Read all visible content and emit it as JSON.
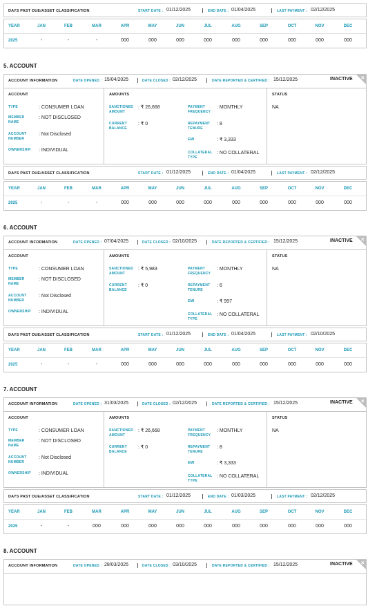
{
  "labels": {
    "dpd": "DAYS PAST DUE/ASSET CLASSIFICATION",
    "start": "START DATE :",
    "end": "END DATE :",
    "last": "LAST PAYMENT :",
    "info": "ACCOUNT INFORMATION",
    "opened": "DATE OPENED :",
    "closed": "DATE CLOSED :",
    "reported": "DATE REPORTED & CERTIFIED :",
    "account": "ACCOUNT",
    "amounts": "AMOUNTS",
    "status": "STATUS",
    "type": "TYPE",
    "member": "MEMBER NAME",
    "number": "ACCOUNT NUMBER",
    "ownership": "OWNERSHIP",
    "sanctioned": "SANCTIONED AMOUNT",
    "current": "CURRENT BALANCE",
    "frequency": "PAYMENT FREQUENCY",
    "tenure": "REPAYMENT TENURE",
    "emi": "EMI",
    "collateral": "COLLATERAL TYPE"
  },
  "months": [
    "YEAR",
    "JAN",
    "FEB",
    "MAR",
    "APR",
    "MAY",
    "JUN",
    "JUL",
    "AUG",
    "SEP",
    "OCT",
    "NOV",
    "DEC"
  ],
  "top_dpd": {
    "start": "01/12/2025",
    "end": "01/04/2025",
    "last": "02/12/2025",
    "row": [
      "2025",
      "-",
      "-",
      "-",
      "000",
      "000",
      "000",
      "000",
      "000",
      "000",
      "000",
      "000",
      "000"
    ]
  },
  "accounts": [
    {
      "title": "5. ACCOUNT",
      "badge": "INACTIVE",
      "opened": "15/04/2025",
      "closed": "02/12/2025",
      "reported": "15/12/2025",
      "type": ": CONSUMER LOAN",
      "member": ": NOT DISCLOSED",
      "number": ": Not Disclosed",
      "ownership": ": INDIVIDUAL",
      "sanctioned": ": ₹ 26,668",
      "current": ": ₹ 0",
      "frequency": ": MONTHLY",
      "tenure": ": 8",
      "emi": ": ₹ 3,333",
      "collateral": ": NO COLLATERAL",
      "status": "NA",
      "dpd": {
        "start": "01/12/2025",
        "end": "01/04/2025",
        "last": "02/12/2025",
        "row": [
          "2025",
          "-",
          "-",
          "-",
          "000",
          "000",
          "000",
          "000",
          "000",
          "000",
          "000",
          "000",
          "000"
        ]
      }
    },
    {
      "title": "6. ACCOUNT",
      "badge": "INACTIVE",
      "opened": "07/04/2025",
      "closed": "02/10/2025",
      "reported": "15/12/2025",
      "type": ": CONSUMER LOAN",
      "member": ": NOT DISCLOSED",
      "number": ": Not Disclosed",
      "ownership": ": INDIVIDUAL",
      "sanctioned": ": ₹ 5,983",
      "current": ": ₹ 0",
      "frequency": ": MONTHLY",
      "tenure": ": 6",
      "emi": ": ₹ 997",
      "collateral": ": NO COLLATERAL",
      "status": "NA",
      "dpd": {
        "start": "01/12/2025",
        "end": "01/04/2025",
        "last": "02/10/2025",
        "row": [
          "2025",
          "-",
          "-",
          "-",
          "000",
          "000",
          "000",
          "000",
          "000",
          "000",
          "000",
          "000",
          "000"
        ]
      }
    },
    {
      "title": "7. ACCOUNT",
      "badge": "INACTIVE",
      "opened": "31/03/2025",
      "closed": "02/12/2025",
      "reported": "15/12/2025",
      "type": ": CONSUMER LOAN",
      "member": ": NOT DISCLOSED",
      "number": ": Not Disclosed",
      "ownership": ": INDIVIDUAL",
      "sanctioned": ": ₹ 26,668",
      "current": ": ₹ 0",
      "frequency": ": MONTHLY",
      "tenure": ": 8",
      "emi": ": ₹ 3,333",
      "collateral": ": NO COLLATERAL",
      "status": "NA",
      "dpd": {
        "start": "01/12/2025",
        "end": "01/03/2025",
        "last": "02/12/2025",
        "row": [
          "2025",
          "-",
          "-",
          "000",
          "000",
          "000",
          "000",
          "000",
          "000",
          "000",
          "000",
          "000",
          "000"
        ]
      }
    },
    {
      "title": "8. ACCOUNT",
      "badge": "INACTIVE",
      "opened": "28/03/2025",
      "closed": "03/10/2025",
      "reported": "15/12/2025"
    }
  ]
}
